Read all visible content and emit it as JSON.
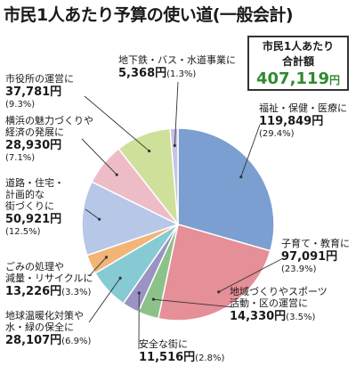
{
  "title": "市民1人あたり予算の使い道(一般会計)",
  "summary": {
    "label_line1": "市民1人あたり",
    "label_line2": "合計額",
    "total": "407,119",
    "unit": "円"
  },
  "colors": {
    "welfare": "#7b9fd0",
    "childcare": "#e58f98",
    "community": "#8cc28a",
    "safety": "#9a93c4",
    "environment": "#86cad3",
    "garbage": "#f2b477",
    "roads": "#b6c7e8",
    "culture": "#eebcc7",
    "office": "#cfe09a",
    "subway": "#c6c2e4"
  },
  "chart_data": {
    "type": "pie",
    "title": "市民1人あたり予算の使い道(一般会計)",
    "start": "12 o'clock",
    "direction": "clockwise",
    "series": [
      {
        "key": "welfare",
        "name": "福祉・保健・医療に",
        "value": 119849,
        "value_text": "119,849",
        "pct": "(29.4%)"
      },
      {
        "key": "childcare",
        "name": "子育て・教育に",
        "value": 97091,
        "value_text": "97,091",
        "pct": "(23.9%)"
      },
      {
        "key": "community",
        "name": "地域づくりやスポーツ活動・区の運営に",
        "value": 14330,
        "value_text": "14,330",
        "pct": "(3.5%)"
      },
      {
        "key": "safety",
        "name": "安全な街に",
        "value": 11516,
        "value_text": "11,516",
        "pct": "(2.8%)"
      },
      {
        "key": "environment",
        "name": "地球温暖化対策や水・緑の保全に",
        "value": 28107,
        "value_text": "28,107",
        "pct": "(6.9%)"
      },
      {
        "key": "garbage",
        "name": "ごみの処理や減量・リサイクルに",
        "value": 13226,
        "value_text": "13,226",
        "pct": "(3.3%)"
      },
      {
        "key": "roads",
        "name": "道路・住宅・計画的な街づくりに",
        "value": 50921,
        "value_text": "50,921",
        "pct": "(12.5%)"
      },
      {
        "key": "culture",
        "name": "横浜の魅力づくりや経済の発展に",
        "value": 28930,
        "value_text": "28,930",
        "pct": "(7.1%)"
      },
      {
        "key": "office",
        "name": "市役所の運営に",
        "value": 37781,
        "value_text": "37,781",
        "pct": "(9.3%)"
      },
      {
        "key": "subway",
        "name": "地下鉄・バス・水道事業に",
        "value": 5368,
        "value_text": "5,368",
        "pct": "(1.3%)"
      }
    ],
    "legend": "none"
  },
  "labels": {
    "welfare": [
      "福祉・保健・医療に"
    ],
    "childcare": [
      "子育て・教育に"
    ],
    "community": [
      "地域づくりやスポーツ",
      "活動・区の運営に"
    ],
    "safety": [
      "安全な街に"
    ],
    "environment": [
      "地球温暖化対策や",
      "水・緑の保全に"
    ],
    "garbage": [
      "ごみの処理や",
      "減量・リサイクルに"
    ],
    "roads": [
      "道路・住宅・",
      "計画的な",
      "街づくりに"
    ],
    "culture": [
      "横浜の魅力づくりや",
      "経済の発展に"
    ],
    "office": [
      "市役所の運営に"
    ],
    "subway": [
      "地下鉄・バス・水道事業に"
    ]
  },
  "yen": "円"
}
